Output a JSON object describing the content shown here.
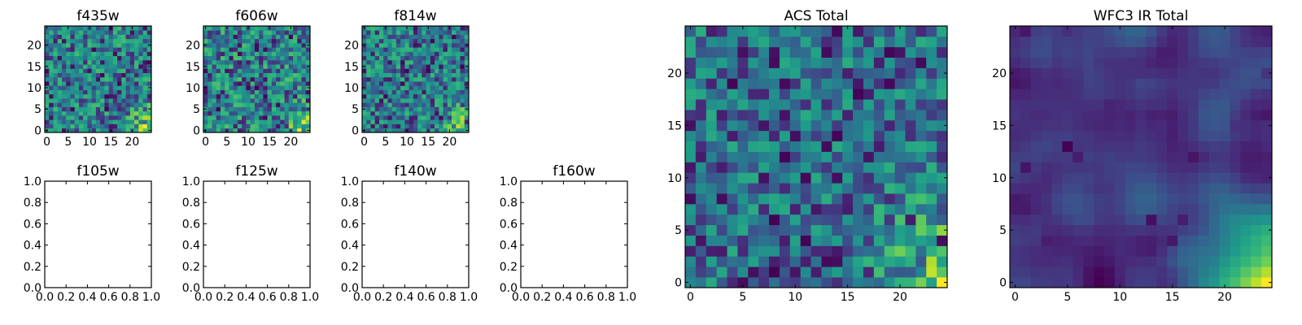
{
  "chart_data": [
    {
      "type": "heatmap",
      "title": "f435w",
      "xlabel": "",
      "ylabel": "",
      "xlim": [
        -0.5,
        24.5
      ],
      "ylim": [
        -0.5,
        24.5
      ],
      "xticks": [
        0,
        5,
        10,
        15,
        20
      ],
      "yticks": [
        0,
        5,
        10,
        15,
        20
      ],
      "grid": false,
      "data_shape": [
        25,
        25
      ],
      "value_range": [
        0,
        1
      ],
      "colormap": "viridis"
    },
    {
      "type": "heatmap",
      "title": "f606w",
      "xlabel": "",
      "ylabel": "",
      "xlim": [
        -0.5,
        24.5
      ],
      "ylim": [
        -0.5,
        24.5
      ],
      "xticks": [
        0,
        5,
        10,
        15,
        20
      ],
      "yticks": [
        0,
        5,
        10,
        15,
        20
      ],
      "grid": false,
      "data_shape": [
        25,
        25
      ],
      "value_range": [
        0,
        1
      ],
      "colormap": "viridis"
    },
    {
      "type": "heatmap",
      "title": "f814w",
      "xlabel": "",
      "ylabel": "",
      "xlim": [
        -0.5,
        24.5
      ],
      "ylim": [
        -0.5,
        24.5
      ],
      "xticks": [
        0,
        5,
        10,
        15,
        20
      ],
      "yticks": [
        0,
        5,
        10,
        15,
        20
      ],
      "grid": false,
      "data_shape": [
        25,
        25
      ],
      "value_range": [
        0,
        1
      ],
      "colormap": "viridis"
    },
    {
      "type": "line",
      "title": "f105w",
      "xlabel": "",
      "ylabel": "",
      "xlim": [
        0,
        1
      ],
      "ylim": [
        0,
        1
      ],
      "xticks": [
        0.0,
        0.2,
        0.4,
        0.6,
        0.8,
        1.0
      ],
      "yticks": [
        0.0,
        0.2,
        0.4,
        0.6,
        0.8,
        1.0
      ],
      "tick_format": 1,
      "series": []
    },
    {
      "type": "line",
      "title": "f125w",
      "xlabel": "",
      "ylabel": "",
      "xlim": [
        0,
        1
      ],
      "ylim": [
        0,
        1
      ],
      "xticks": [
        0.0,
        0.2,
        0.4,
        0.6,
        0.8,
        1.0
      ],
      "yticks": [
        0.0,
        0.2,
        0.4,
        0.6,
        0.8,
        1.0
      ],
      "tick_format": 1,
      "series": []
    },
    {
      "type": "line",
      "title": "f140w",
      "xlabel": "",
      "ylabel": "",
      "xlim": [
        0,
        1
      ],
      "ylim": [
        0,
        1
      ],
      "xticks": [
        0.0,
        0.2,
        0.4,
        0.6,
        0.8,
        1.0
      ],
      "yticks": [
        0.0,
        0.2,
        0.4,
        0.6,
        0.8,
        1.0
      ],
      "tick_format": 1,
      "series": []
    },
    {
      "type": "line",
      "title": "f160w",
      "xlabel": "",
      "ylabel": "",
      "xlim": [
        0,
        1
      ],
      "ylim": [
        0,
        1
      ],
      "xticks": [
        0.0,
        0.2,
        0.4,
        0.6,
        0.8,
        1.0
      ],
      "yticks": [
        0.0,
        0.2,
        0.4,
        0.6,
        0.8,
        1.0
      ],
      "tick_format": 1,
      "series": []
    },
    {
      "type": "heatmap",
      "title": "ACS Total",
      "xlabel": "",
      "ylabel": "",
      "xlim": [
        -0.5,
        24.5
      ],
      "ylim": [
        -0.5,
        24.5
      ],
      "xticks": [
        0,
        5,
        10,
        15,
        20
      ],
      "yticks": [
        0,
        5,
        10,
        15,
        20
      ],
      "grid": false,
      "data_shape": [
        25,
        25
      ],
      "value_range": [
        0,
        1
      ],
      "colormap": "viridis"
    },
    {
      "type": "heatmap",
      "title": "WFC3 IR Total",
      "xlabel": "",
      "ylabel": "",
      "xlim": [
        -0.5,
        24.5
      ],
      "ylim": [
        -0.5,
        24.5
      ],
      "xticks": [
        0,
        5,
        10,
        15,
        20
      ],
      "yticks": [
        0,
        5,
        10,
        15,
        20
      ],
      "grid": false,
      "data_shape": [
        25,
        25
      ],
      "value_range": [
        0,
        1
      ],
      "colormap": "viridis"
    }
  ]
}
